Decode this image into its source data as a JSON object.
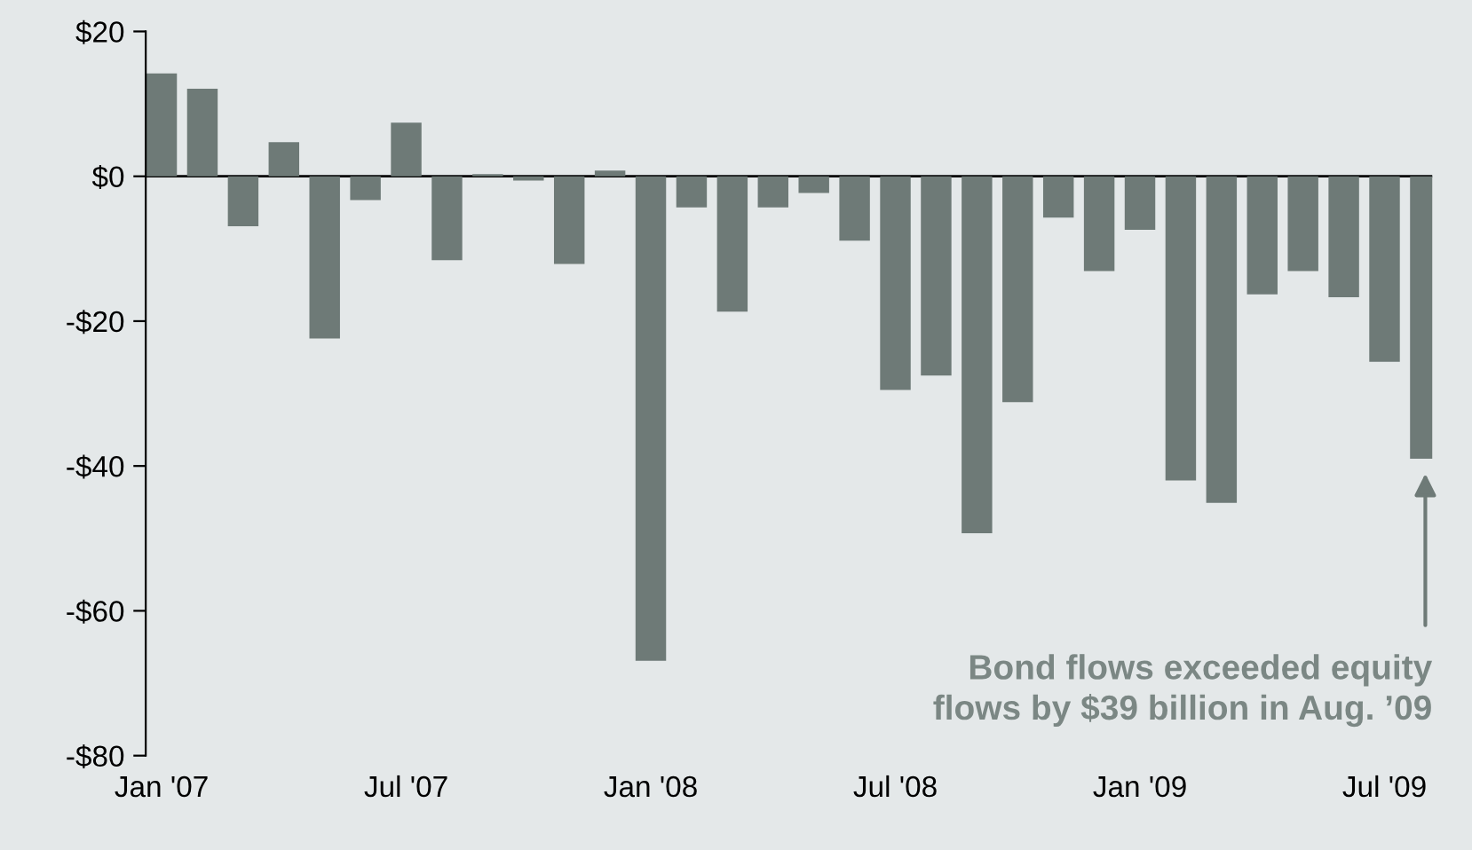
{
  "chart_data": {
    "type": "bar",
    "categories": [
      "Jan '07",
      null,
      null,
      null,
      null,
      null,
      "Jul '07",
      null,
      null,
      null,
      null,
      null,
      "Jan '08",
      null,
      null,
      null,
      null,
      null,
      "Jul '08",
      null,
      null,
      null,
      null,
      null,
      "Jan '09",
      null,
      null,
      null,
      null,
      null,
      "Jul '09",
      null
    ],
    "values": [
      14.2,
      12.1,
      -6.9,
      4.7,
      -22.4,
      -3.3,
      7.4,
      -11.6,
      0.3,
      -0.6,
      -12.1,
      0.8,
      -66.9,
      -4.3,
      -18.7,
      -4.3,
      -2.3,
      -8.9,
      -29.5,
      -27.5,
      -49.3,
      -31.2,
      -5.7,
      -13.1,
      -7.4,
      -42.0,
      -45.1,
      -16.3,
      -13.1,
      -16.7,
      -25.6,
      -39
    ],
    "color": "#6e7a77",
    "ylim": [
      -80,
      20
    ],
    "yticks": [
      {
        "value": 20,
        "label": "$20"
      },
      {
        "value": 0,
        "label": "$0"
      },
      {
        "value": -20,
        "label": "-$20"
      },
      {
        "value": -40,
        "label": "-$40"
      },
      {
        "value": -60,
        "label": "-$60"
      },
      {
        "value": -80,
        "label": "-$80"
      }
    ],
    "ref_lines": [
      {
        "axis": "y",
        "value": 0,
        "color": "#000000"
      }
    ],
    "annotations": [
      "Bond flows exceeded equity\nflows by $39 billion in Aug. ’09"
    ],
    "grid": false,
    "legend": false
  }
}
